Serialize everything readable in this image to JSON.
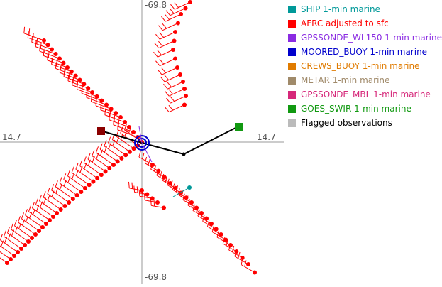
{
  "plot": {
    "center_labels": {
      "top": "-69.8",
      "bottom": "-69.8",
      "left": "14.7",
      "right": "14.7"
    }
  },
  "legend": [
    {
      "label": "SHIP 1-min marine",
      "color": "#009999",
      "text_color": "#009999"
    },
    {
      "label": "AFRC adjusted to sfc",
      "color": "#ff0000",
      "text_color": "#ff0000"
    },
    {
      "label": "GPSSONDE_WL150 1-min marine",
      "color": "#8a2be2",
      "text_color": "#8a2be2"
    },
    {
      "label": "MOORED_BUOY 1-min marine",
      "color": "#0000cc",
      "text_color": "#0000cc"
    },
    {
      "label": "CREWS_BUOY 1-min marine",
      "color": "#e07b00",
      "text_color": "#e07b00"
    },
    {
      "label": "METAR 1-min marine",
      "color": "#a08a6a",
      "text_color": "#a08a6a"
    },
    {
      "label": "GPSSONDE_MBL 1-min marine",
      "color": "#d6287a",
      "text_color": "#d6287a"
    },
    {
      "label": "GOES_SWIR 1-min marine",
      "color": "#119911",
      "text_color": "#119911"
    },
    {
      "label": "Flagged observations",
      "color": "#bbbbbb",
      "text_color": "#000000"
    }
  ]
}
